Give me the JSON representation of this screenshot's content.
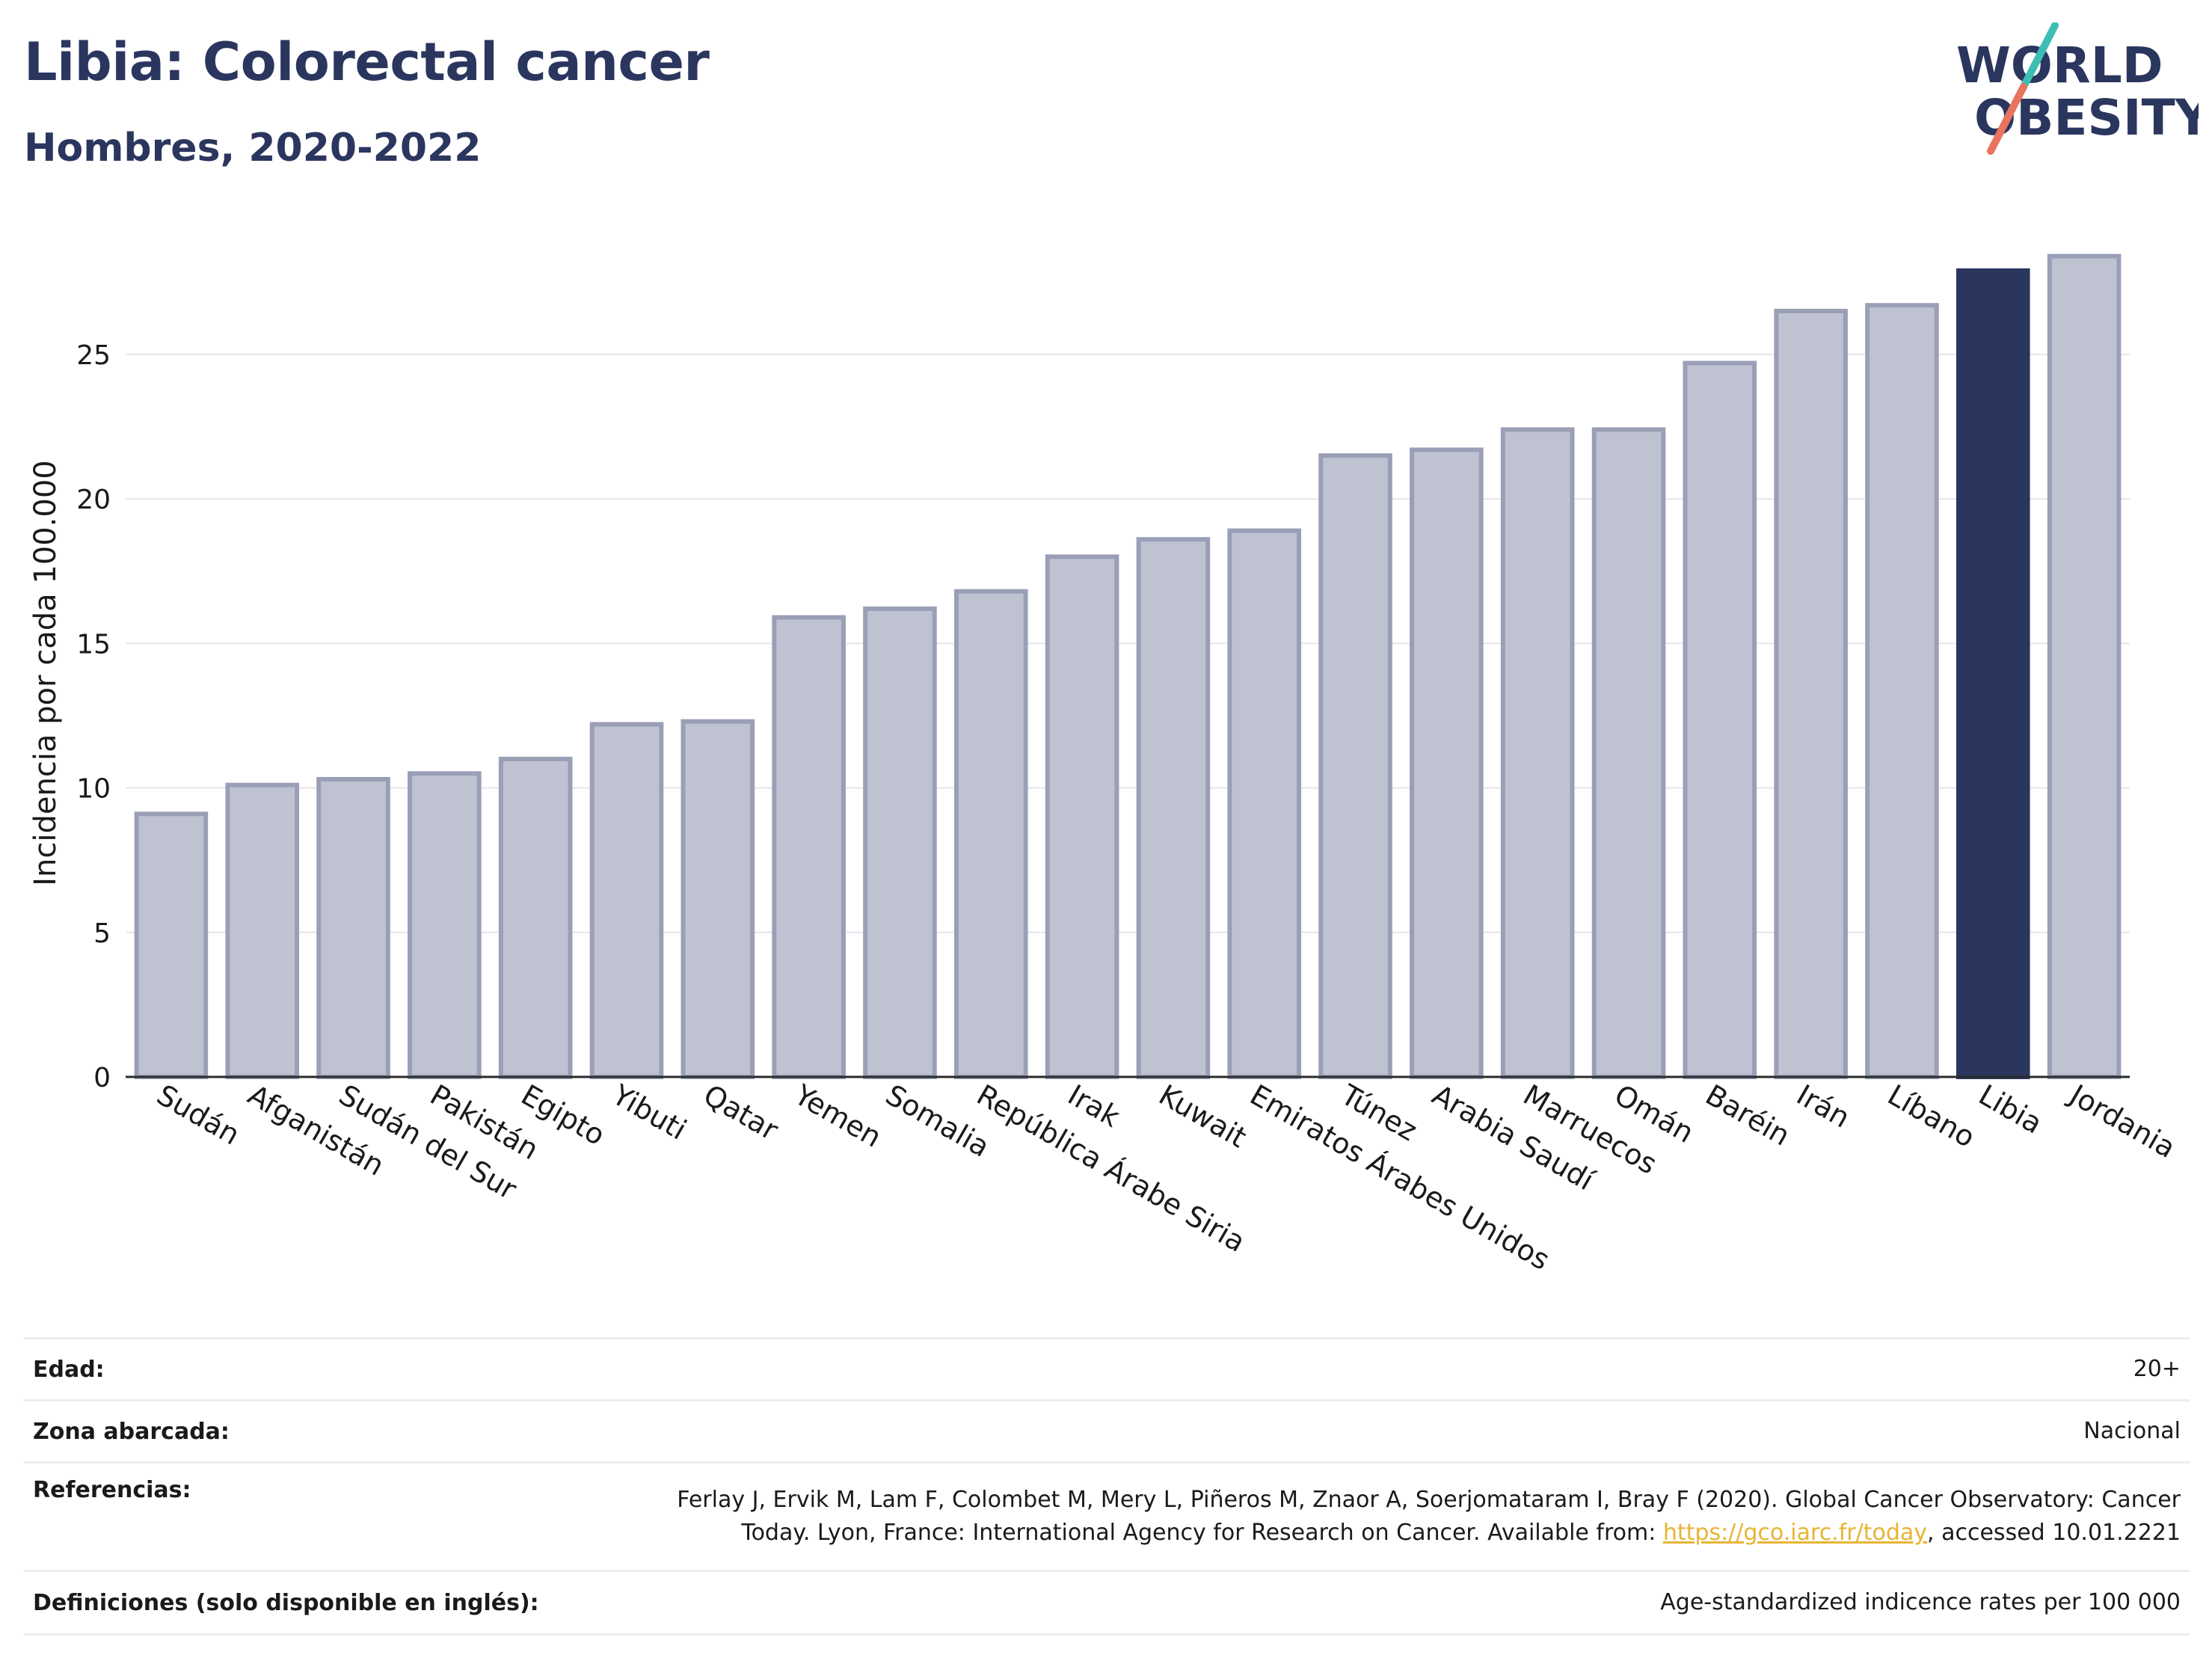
{
  "header": {
    "title": "Libia: Colorectal cancer",
    "subtitle": "Hombres, 2020-2022"
  },
  "logo": {
    "line1": "WORLD",
    "line2": "OBESITY",
    "accent_teal": "#3dbdb4",
    "accent_coral": "#e8735f"
  },
  "colors": {
    "bar": "#bfc3d1",
    "bar_stroke": "#9a9fb7",
    "highlight": "#2b365f",
    "grid": "#e6e6ea"
  },
  "chart_data": {
    "type": "bar",
    "categories": [
      "Sudán",
      "Afganistán",
      "Sudán del Sur",
      "Pakistán",
      "Egipto",
      "Yibuti",
      "Qatar",
      "Yemen",
      "Somalia",
      "República Árabe Siria",
      "Irak",
      "Kuwait",
      "Emiratos Árabes Unidos",
      "Túnez",
      "Arabia Saudí",
      "Marruecos",
      "Omán",
      "Baréin",
      "Irán",
      "Líbano",
      "Libia",
      "Jordania"
    ],
    "values": [
      9.1,
      10.1,
      10.3,
      10.5,
      11.0,
      12.2,
      12.3,
      15.9,
      16.2,
      16.8,
      18.0,
      18.6,
      18.9,
      21.5,
      21.7,
      22.4,
      22.4,
      24.7,
      26.5,
      26.7,
      27.9,
      28.4
    ],
    "highlight": "Libia",
    "ylabel": "Incidencia por cada 100.000",
    "yticks": [
      0,
      5,
      10,
      15,
      20,
      25
    ],
    "ylim": [
      0,
      29.5
    ],
    "grid": true
  },
  "meta": {
    "rows": [
      {
        "key": "Edad:",
        "value": "20+"
      },
      {
        "key": "Zona abarcada:",
        "value": "Nacional"
      },
      {
        "key": "Referencias:",
        "value_line1": "Ferlay J, Ervik M, Lam F, Colombet M, Mery L, Piñeros M, Znaor A, Soerjomataram I, Bray F (2020). Global Cancer Observatory: Cancer",
        "value_line2_pre": "Today. Lyon, France: International Agency for Research on Cancer. Available from: ",
        "link": "https://gco.iarc.fr/today",
        "value_line2_post": ", accessed 10.01.2221"
      },
      {
        "key": "Definiciones (solo disponible en inglés):",
        "value": "Age-standardized indicence rates per 100 000"
      }
    ]
  }
}
